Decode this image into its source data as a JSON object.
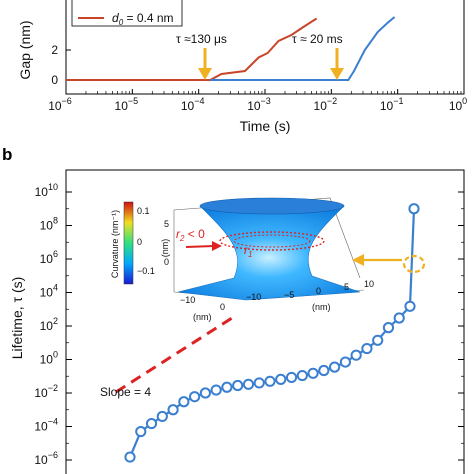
{
  "chart_data": [
    {
      "type": "line",
      "panel_label": "",
      "xlabel": "Time (s)",
      "ylabel": "Gap (nm)",
      "xscale": "log",
      "xlim": [
        1e-06,
        1
      ],
      "ylim_visible": [
        -0.5,
        4
      ],
      "xtick_labels": [
        "10",
        "10",
        "10",
        "10",
        "10",
        "10",
        "10"
      ],
      "xtick_exponents": [
        "−6",
        "−5",
        "−4",
        "−3",
        "−2",
        "−1",
        "0"
      ],
      "ytick_labels": [
        "0",
        "2"
      ],
      "legend": [
        {
          "label_main": "d",
          "label_sub": "0",
          "label_rest": " = 0.4 nm",
          "color": "#c8452a"
        }
      ],
      "series": [
        {
          "name": "d0 = 0.4 nm",
          "color": "#c8452a",
          "x": [
            1e-06,
            0.00015,
            0.00022,
            0.0005,
            0.0008,
            0.0011,
            0.0016,
            0.0025,
            0.004,
            0.006
          ],
          "y": [
            0,
            0,
            0.4,
            0.6,
            1.5,
            1.8,
            2.6,
            3.0,
            3.6,
            4.1
          ]
        },
        {
          "name": "",
          "color": "#3b7fd0",
          "x": [
            0.00015,
            0.018,
            0.022,
            0.032,
            0.05,
            0.07,
            0.09
          ],
          "y": [
            0,
            0,
            0.6,
            2.0,
            3.2,
            3.8,
            4.2
          ]
        }
      ],
      "annotations": [
        {
          "text": "τ ≈130 μs",
          "x": 0.00015,
          "arrow_color": "#f0b020"
        },
        {
          "text": "τ ≈ 20 ms",
          "x": 0.02,
          "arrow_color": "#f0b020"
        }
      ]
    },
    {
      "type": "line",
      "panel_label": "b",
      "ylabel": "Lifetime, τ (s)",
      "yscale": "log",
      "ylim": [
        1e-06,
        10000000000.0
      ],
      "ytick_labels": [
        "10",
        "10",
        "10",
        "10",
        "10",
        "10",
        "10",
        "10",
        "10"
      ],
      "ytick_exponents": [
        "−6",
        "−4",
        "−2",
        "0",
        "2",
        "4",
        "6",
        "8",
        "10"
      ],
      "series": [
        {
          "name": "",
          "color": "#3b7fd0",
          "marker": "open-circle",
          "points_index": [
            0,
            1,
            2,
            3,
            4,
            5,
            6,
            7,
            8,
            9,
            10,
            11,
            12,
            13,
            14,
            15,
            16,
            17,
            18,
            19,
            20,
            21,
            22,
            23,
            24,
            25,
            26,
            27
          ],
          "y": [
            1.5e-06,
            5e-05,
            0.00015,
            0.0004,
            0.001,
            0.003,
            0.006,
            0.01,
            0.015,
            0.022,
            0.028,
            0.033,
            0.04,
            0.05,
            0.065,
            0.085,
            0.11,
            0.15,
            0.22,
            0.35,
            0.7,
            1.8,
            4.5,
            14.0,
            80.0,
            300.0,
            1500.0,
            1000000000.0
          ]
        }
      ],
      "slope_guide": {
        "text": "Slope = 4",
        "color": "#dd2222"
      },
      "inset": {
        "colorbar_label": "Curvature (nm⁻¹)",
        "colorbar_ticks": [
          "0.1",
          "0",
          "−0.1"
        ],
        "z_label": "(nm)",
        "z_ticks": [
          "5",
          "0"
        ],
        "x_label": "(nm)",
        "x_ticks": [
          "−10",
          "0"
        ],
        "y_label": "(nm)",
        "y_ticks": [
          "−10",
          "−5",
          "0",
          "5",
          "10"
        ],
        "annotation_r2": "r",
        "annotation_r2_sub": "2",
        "annotation_r2_rest": " < 0",
        "annotation_r1": "r",
        "annotation_r1_sub": "1"
      }
    }
  ]
}
